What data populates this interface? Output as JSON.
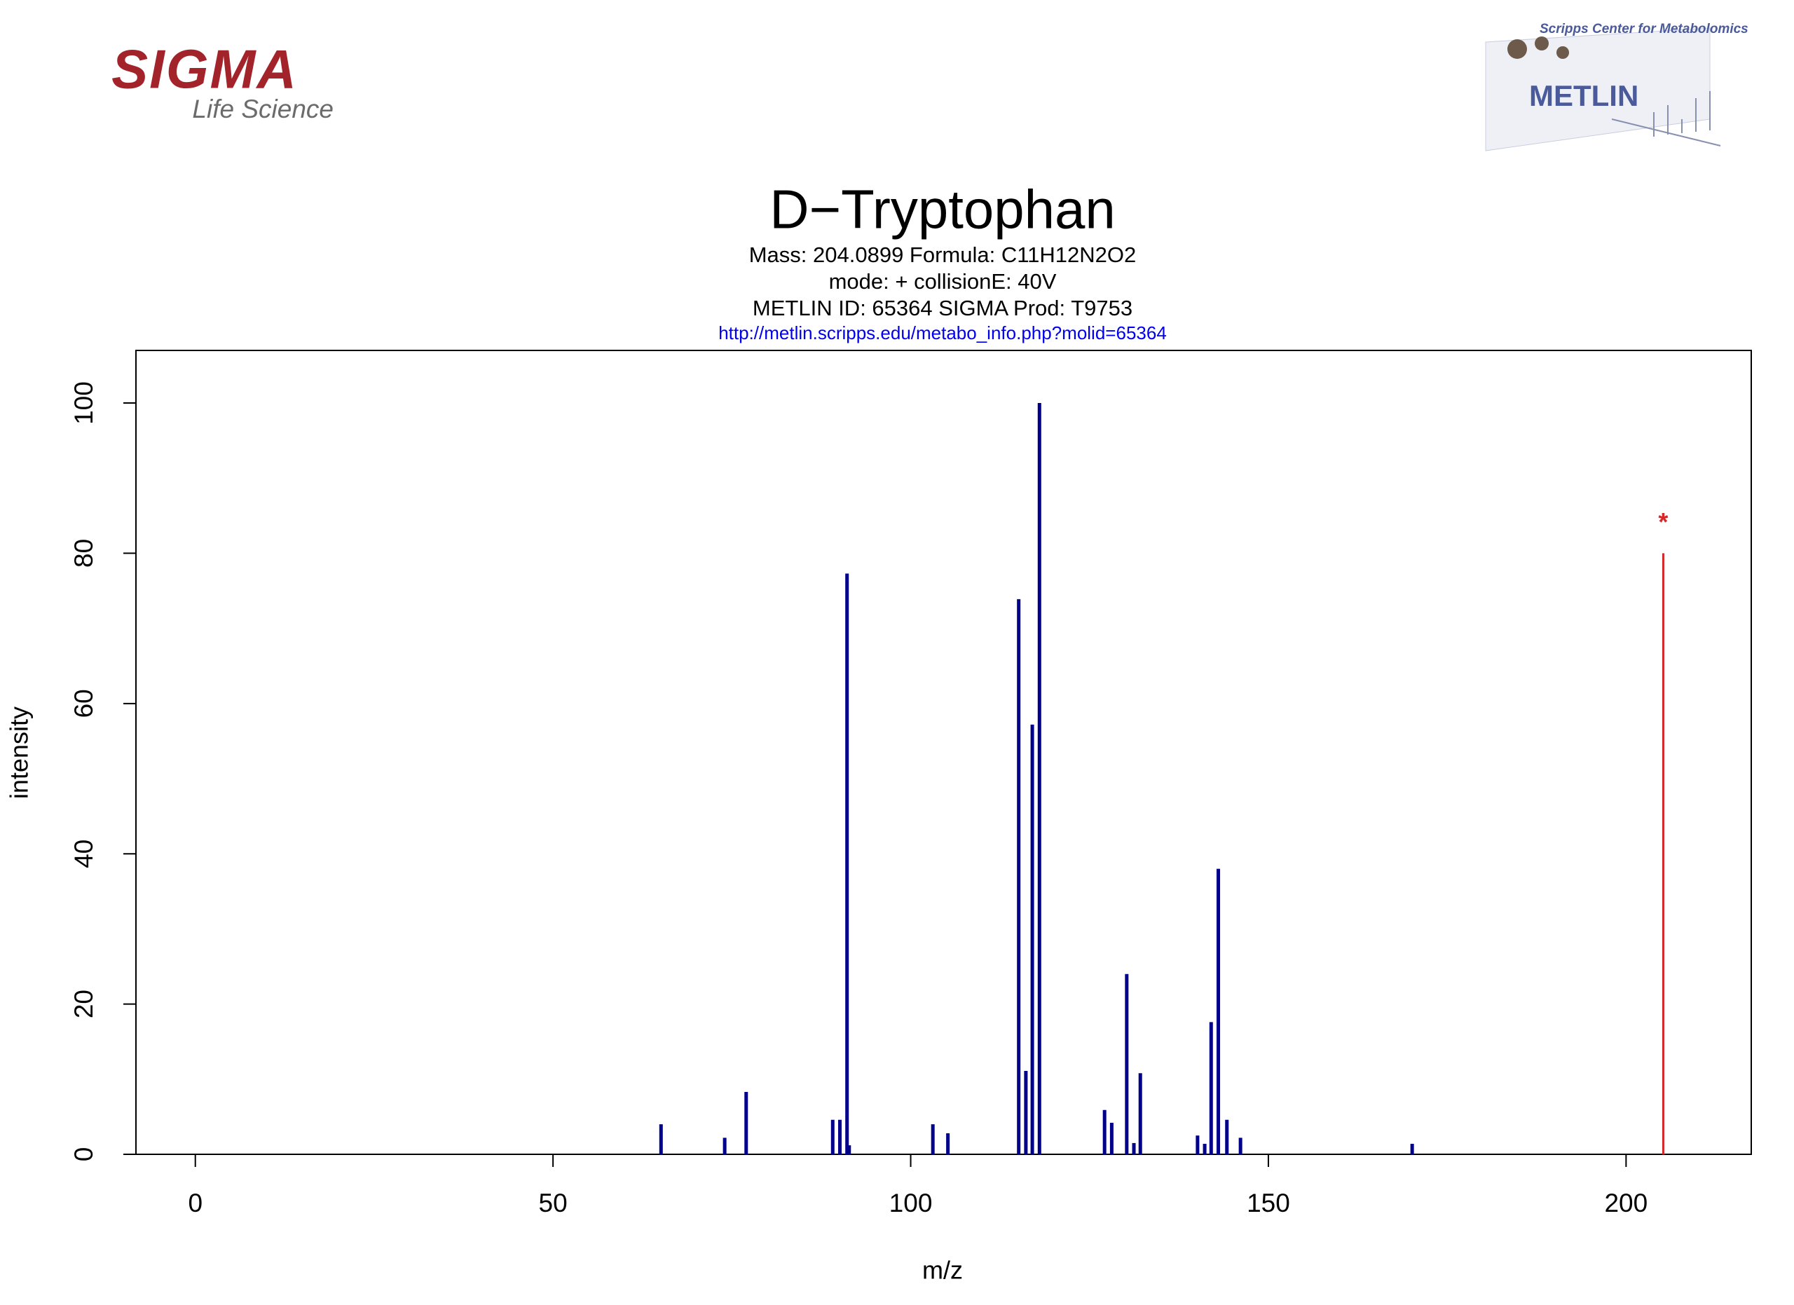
{
  "header": {
    "left_logo": {
      "brand": "SIGMA",
      "tagline": "Life Science"
    },
    "right_logo": {
      "caption": "Scripps Center for Metabolomics",
      "brand": "METLIN"
    }
  },
  "chart_data": {
    "type": "stem",
    "title": "D−Tryptophan",
    "subtitle": [
      "Mass: 204.0899  Formula: C11H12N2O2",
      "mode: +  collisionE: 40V",
      "METLIN ID: 65364  SIGMA Prod: T9753"
    ],
    "link": "http://metlin.scripps.edu/metabo_info.php?molid=65364",
    "x_label": "m/z",
    "y_label": "intensity",
    "xlim": [
      -8.3,
      217.5
    ],
    "xticks": [
      0,
      50,
      100,
      150,
      200
    ],
    "ylim": [
      0,
      107
    ],
    "yticks": [
      0,
      20,
      40,
      60,
      80,
      100
    ],
    "series": [
      {
        "color": "#00008b",
        "x": [
          65.1,
          74.0,
          77.0,
          89.1,
          90.1,
          91.1,
          91.4,
          103.1,
          105.2,
          115.1,
          116.1,
          117.0,
          118.0,
          127.1,
          128.1,
          130.2,
          131.2,
          132.1,
          140.1,
          141.1,
          142.0,
          143.0,
          144.2,
          146.1,
          170.1
        ],
        "values": [
          4.0,
          2.2,
          8.3,
          4.6,
          4.6,
          77.3,
          1.2,
          4.0,
          2.8,
          73.9,
          11.1,
          57.2,
          100,
          5.9,
          4.2,
          24.0,
          1.5,
          10.8,
          2.5,
          1.4,
          17.6,
          38.0,
          4.6,
          2.2,
          1.4
        ]
      },
      {
        "color": "#d62728",
        "x": [
          205.2
        ],
        "values": [
          80
        ],
        "marker": "*"
      }
    ]
  }
}
